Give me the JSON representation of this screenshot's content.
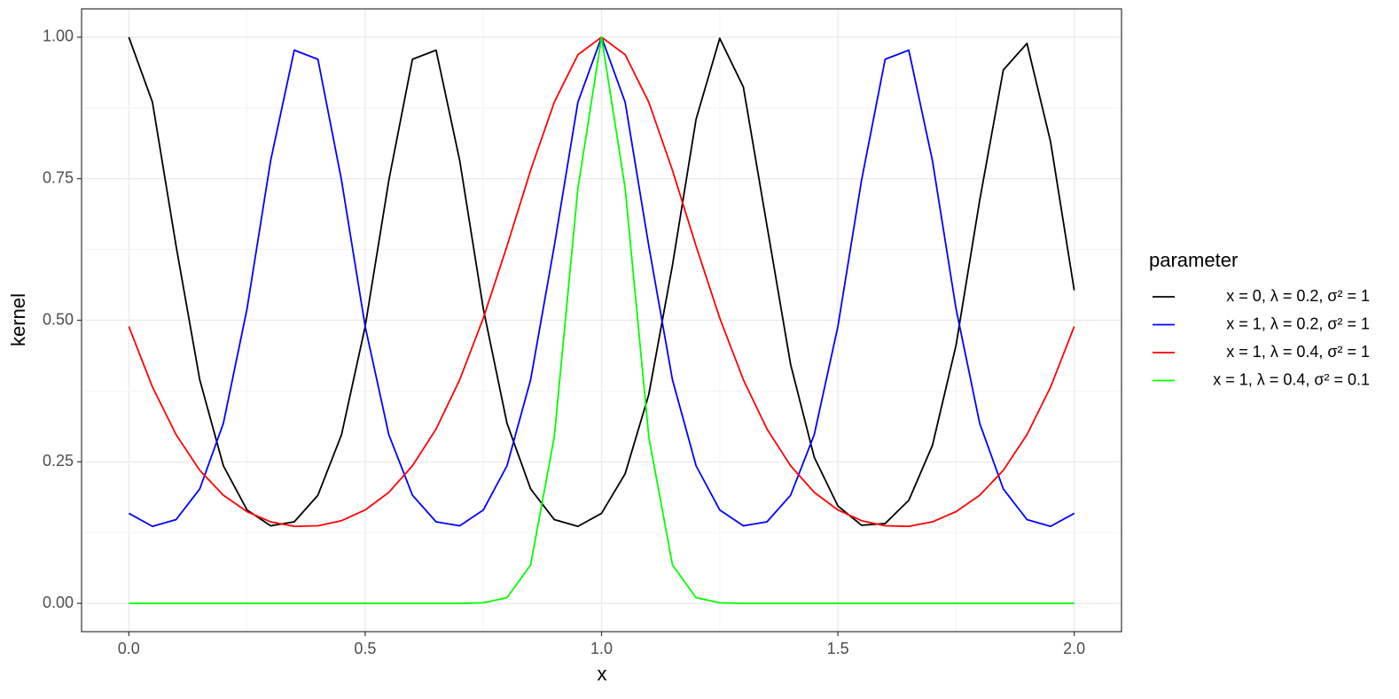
{
  "chart_data": {
    "type": "line",
    "xlabel": "x",
    "ylabel": "kernel",
    "legend_title": "parameter",
    "legend_position": "right",
    "grid": true,
    "xlim": [
      -0.1,
      2.1
    ],
    "xticks": [
      {
        "value": 0,
        "label": "0.0"
      },
      0.5,
      {
        "value": 1,
        "label": "1.0"
      },
      1.5,
      {
        "value": 2,
        "label": "2.0"
      }
    ],
    "ylim": [
      -0.05,
      1.05
    ],
    "yticks": [
      {
        "value": 0,
        "label": "0.00"
      },
      0.25,
      {
        "value": 0.5,
        "label": "0.50"
      },
      0.75,
      {
        "value": 1,
        "label": "1.00"
      }
    ],
    "x": [
      0,
      0.05,
      0.1,
      0.15,
      0.2,
      0.25,
      0.3,
      0.35,
      0.4,
      0.45,
      0.5,
      0.55,
      0.6,
      0.65,
      0.7,
      0.75,
      0.8,
      0.85,
      0.9,
      0.95,
      1,
      1.05,
      1.1,
      1.15,
      1.2,
      1.25,
      1.3,
      1.35,
      1.4,
      1.45,
      1.5,
      1.55,
      1.6,
      1.65,
      1.7,
      1.75,
      1.8,
      1.85,
      1.9,
      1.95,
      2
    ],
    "series": [
      {
        "name": "x = 0, λ = 0.2, σ² = 1",
        "color": "#000000",
        "values": [
          1,
          0.885,
          0.631,
          0.395,
          0.243,
          0.165,
          0.137,
          0.144,
          0.191,
          0.298,
          0.489,
          0.747,
          0.961,
          0.977,
          0.782,
          0.52,
          0.318,
          0.202,
          0.148,
          0.136,
          0.159,
          0.229,
          0.369,
          0.597,
          0.855,
          0.998,
          0.912,
          0.667,
          0.422,
          0.258,
          0.172,
          0.138,
          0.141,
          0.182,
          0.279,
          0.456,
          0.712,
          0.942,
          0.989,
          0.815,
          0.553
        ]
      },
      {
        "name": "x = 1, λ = 0.2, σ² = 1",
        "color": "#0000ff",
        "values": [
          0.159,
          0.136,
          0.148,
          0.202,
          0.318,
          0.52,
          0.782,
          0.977,
          0.961,
          0.747,
          0.489,
          0.298,
          0.191,
          0.144,
          0.137,
          0.165,
          0.243,
          0.395,
          0.631,
          0.885,
          1,
          0.885,
          0.631,
          0.395,
          0.243,
          0.165,
          0.137,
          0.144,
          0.191,
          0.298,
          0.489,
          0.747,
          0.961,
          0.977,
          0.782,
          0.52,
          0.318,
          0.202,
          0.148,
          0.136,
          0.159
        ]
      },
      {
        "name": "x = 1, λ = 0.4, σ² = 1",
        "color": "#ff0000",
        "values": [
          0.489,
          0.382,
          0.298,
          0.235,
          0.191,
          0.162,
          0.144,
          0.136,
          0.137,
          0.146,
          0.165,
          0.196,
          0.243,
          0.308,
          0.395,
          0.504,
          0.631,
          0.765,
          0.885,
          0.969,
          1,
          0.969,
          0.885,
          0.765,
          0.631,
          0.504,
          0.395,
          0.308,
          0.243,
          0.196,
          0.165,
          0.146,
          0.137,
          0.136,
          0.144,
          0.162,
          0.191,
          0.235,
          0.298,
          0.382,
          0.489
        ]
      },
      {
        "name": "x = 1, λ = 0.4, σ² = 0.1",
        "color": "#00ff00",
        "values": [
          0,
          0,
          0,
          0,
          0,
          0,
          0,
          0,
          0,
          0,
          0,
          0,
          0,
          0,
          0,
          0.001,
          0.01,
          0.068,
          0.294,
          0.733,
          1,
          0.733,
          0.294,
          0.068,
          0.01,
          0.001,
          0,
          0,
          0,
          0,
          0,
          0,
          0,
          0,
          0,
          0,
          0,
          0,
          0,
          0,
          0
        ]
      }
    ]
  }
}
